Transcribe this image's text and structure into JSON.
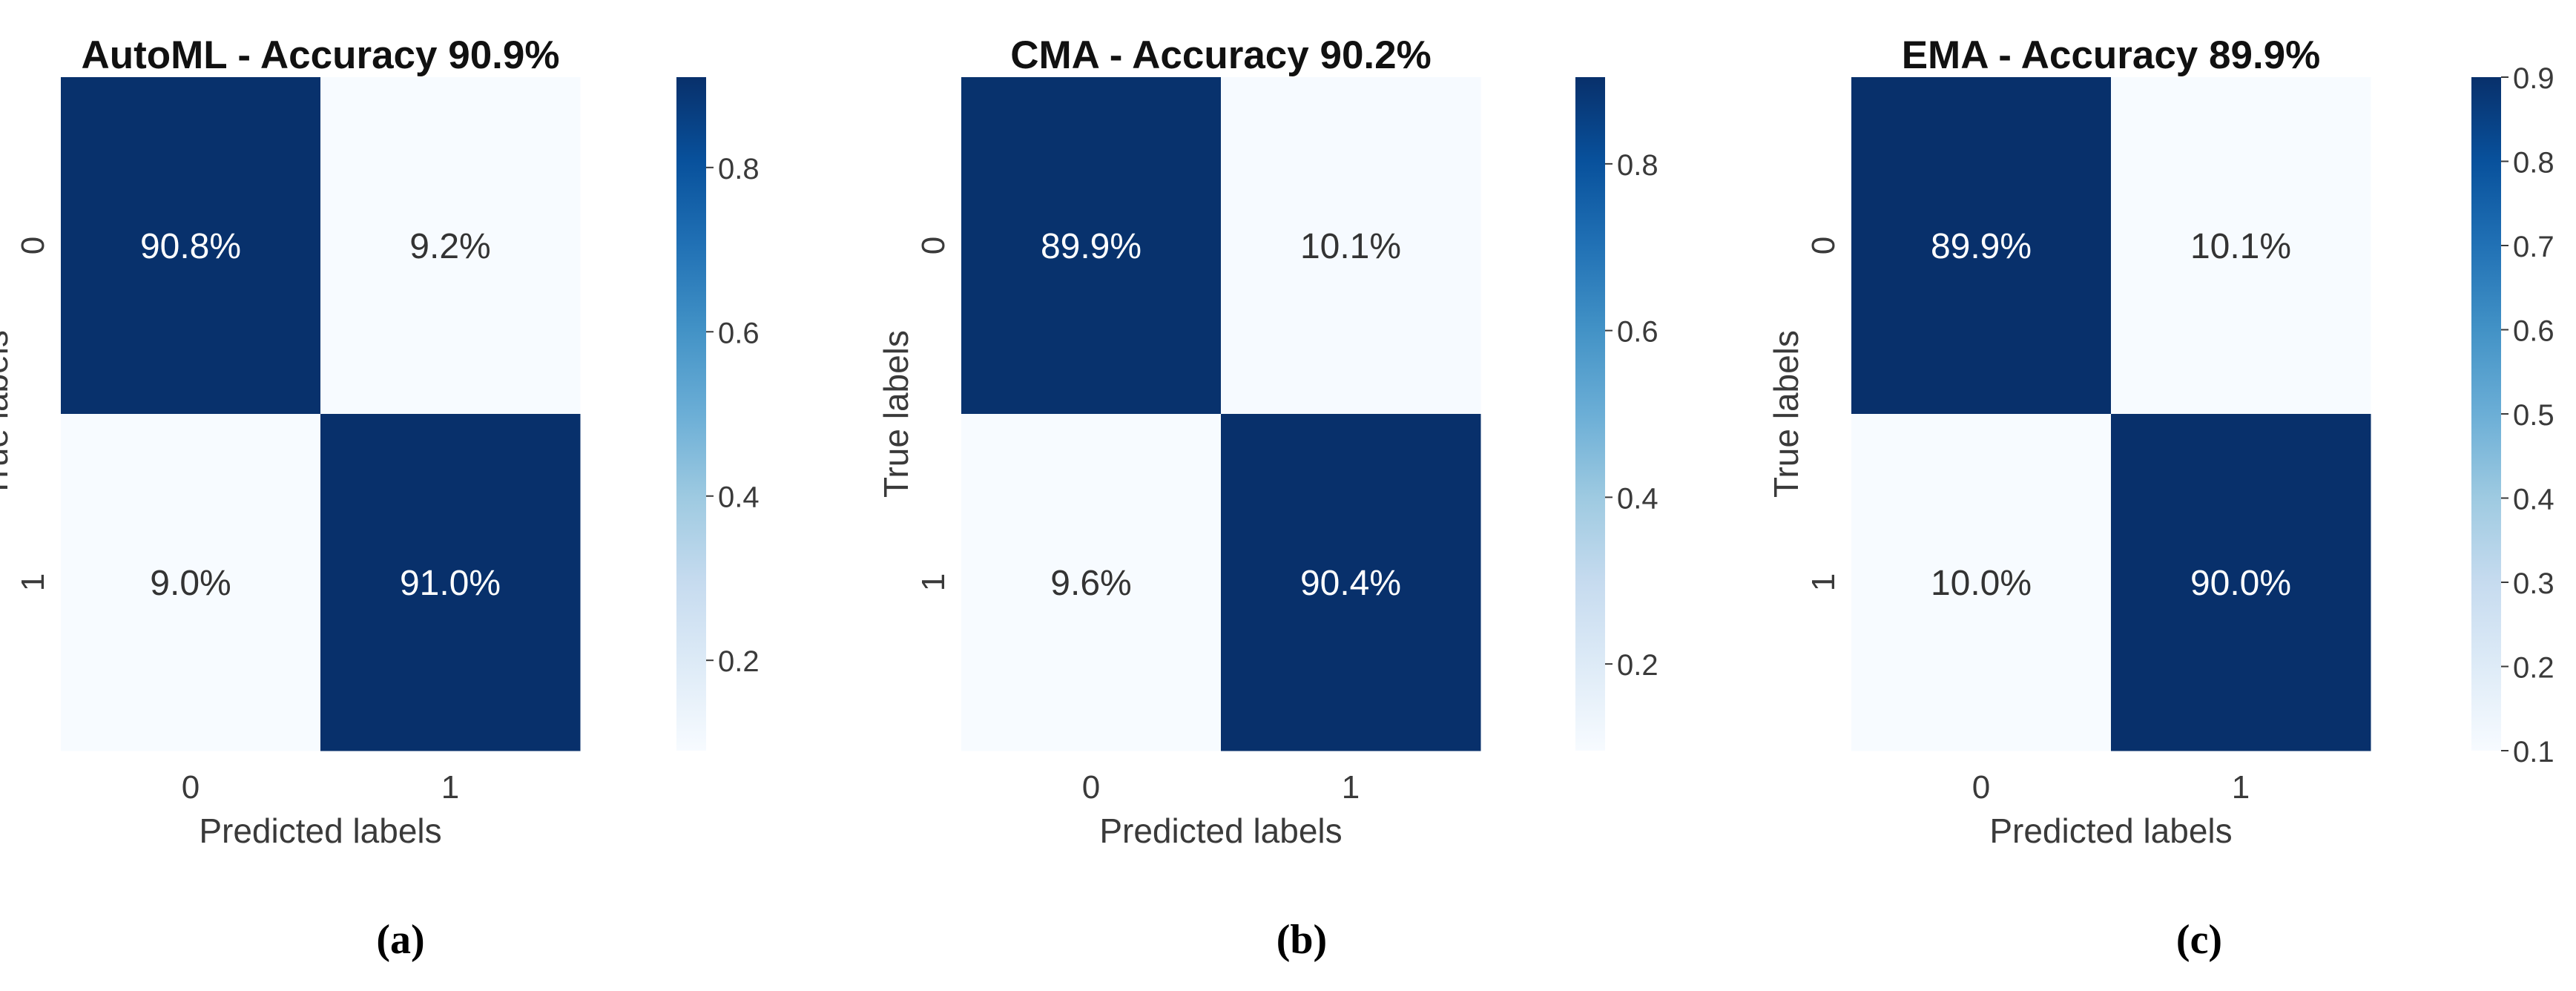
{
  "figure": {
    "panel_captions": [
      "(a)",
      "(b)",
      "(c)"
    ]
  },
  "colors": {
    "dark": "#08306b",
    "light": "#f7fbff",
    "text_on_dark": "#ffffff",
    "text_on_light": "#333333",
    "axis_text": "#3a3a3a",
    "title_text": "#111111"
  },
  "colormap": {
    "name": "Blues",
    "stops": [
      "#f7fbff",
      "#deebf7",
      "#c6dbef",
      "#9ecae1",
      "#6baed6",
      "#4292c6",
      "#2171b5",
      "#08519c",
      "#08306b"
    ]
  },
  "chart_data": [
    {
      "type": "heatmap",
      "title": "AutoML - Accuracy 90.9%",
      "xlabel": "Predicted labels",
      "ylabel": "True labels",
      "x_categories": [
        "0",
        "1"
      ],
      "y_categories": [
        "0",
        "1"
      ],
      "values": [
        [
          0.908,
          0.092
        ],
        [
          0.09,
          0.91
        ]
      ],
      "cell_labels": [
        [
          "90.8%",
          "9.2%"
        ],
        [
          "9.0%",
          "91.0%"
        ]
      ],
      "colorbar": {
        "range": [
          0.09,
          0.91
        ],
        "ticks": [
          0.2,
          0.4,
          0.6,
          0.8
        ],
        "tick_labels": [
          "0.2",
          "0.4",
          "0.6",
          "0.8"
        ]
      }
    },
    {
      "type": "heatmap",
      "title": "CMA - Accuracy 90.2%",
      "xlabel": "Predicted labels",
      "ylabel": "True labels",
      "x_categories": [
        "0",
        "1"
      ],
      "y_categories": [
        "0",
        "1"
      ],
      "values": [
        [
          0.899,
          0.101
        ],
        [
          0.096,
          0.904
        ]
      ],
      "cell_labels": [
        [
          "89.9%",
          "10.1%"
        ],
        [
          "9.6%",
          "90.4%"
        ]
      ],
      "colorbar": {
        "range": [
          0.096,
          0.904
        ],
        "ticks": [
          0.2,
          0.4,
          0.6,
          0.8
        ],
        "tick_labels": [
          "0.2",
          "0.4",
          "0.6",
          "0.8"
        ]
      }
    },
    {
      "type": "heatmap",
      "title": "EMA - Accuracy 89.9%",
      "xlabel": "Predicted labels",
      "ylabel": "True labels",
      "x_categories": [
        "0",
        "1"
      ],
      "y_categories": [
        "0",
        "1"
      ],
      "values": [
        [
          0.899,
          0.101
        ],
        [
          0.1,
          0.9
        ]
      ],
      "cell_labels": [
        [
          "89.9%",
          "10.1%"
        ],
        [
          "10.0%",
          "90.0%"
        ]
      ],
      "colorbar": {
        "range": [
          0.1,
          0.9
        ],
        "ticks": [
          0.1,
          0.2,
          0.3,
          0.4,
          0.5,
          0.6,
          0.7,
          0.8,
          0.9
        ],
        "tick_labels": [
          "0.1",
          "0.2",
          "0.3",
          "0.4",
          "0.5",
          "0.6",
          "0.7",
          "0.8",
          "0.9"
        ]
      }
    }
  ]
}
